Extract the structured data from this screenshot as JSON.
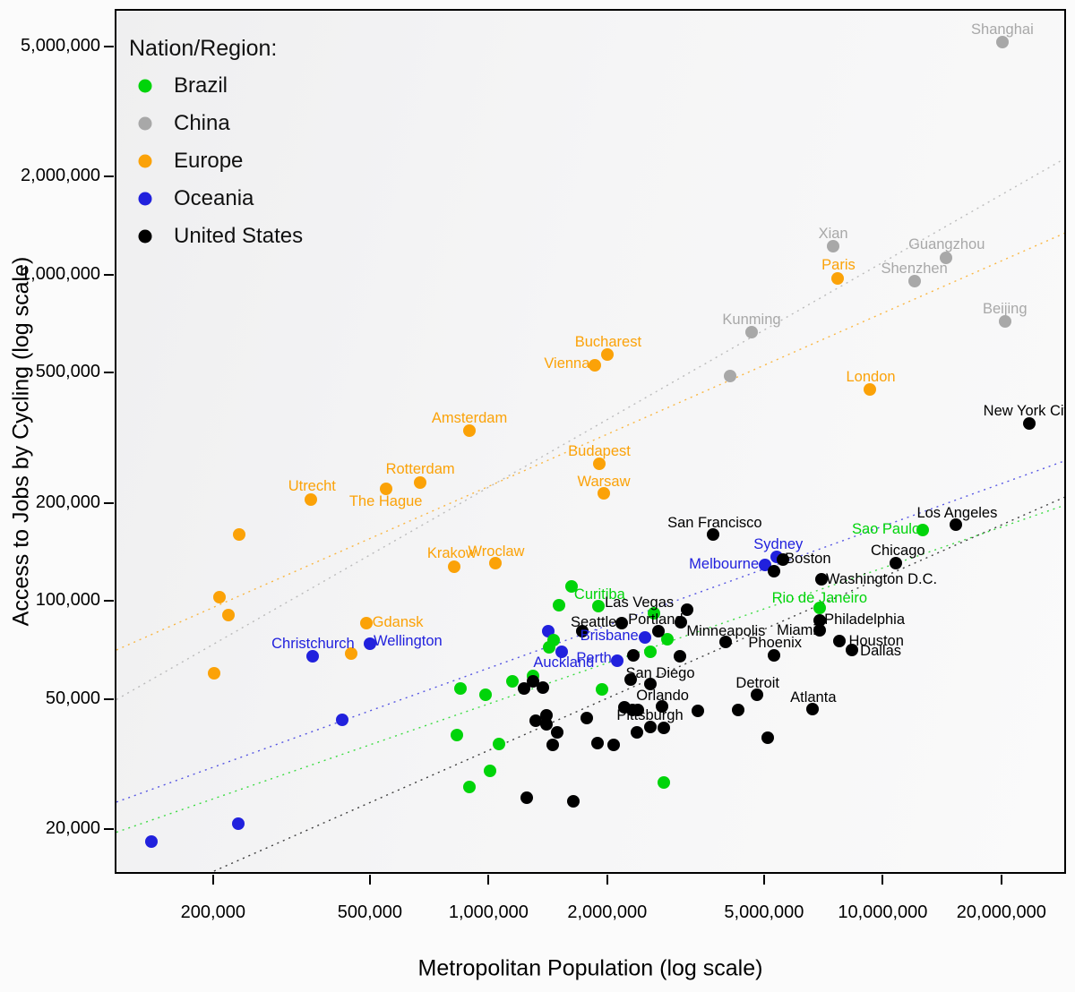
{
  "legend": {
    "title": "Nation/Region:",
    "items": [
      {
        "label": "Brazil",
        "color": "#00d40a"
      },
      {
        "label": "China",
        "color": "#a8a8a8"
      },
      {
        "label": "Europe",
        "color": "#fba208"
      },
      {
        "label": "Oceania",
        "color": "#2121dd"
      },
      {
        "label": "United States",
        "color": "#000000"
      }
    ]
  },
  "chart_data": {
    "type": "scatter",
    "xlabel": "Metropolitan Population (log scale)",
    "ylabel": "Access to Jobs by Cycling (log scale)",
    "x_scale": "log",
    "y_scale": "log",
    "x_log_domain": [
      5.0515,
      7.465
    ],
    "y_log_domain": [
      4.164,
      6.814
    ],
    "x_ticks": [
      {
        "value": 200000,
        "label": "200,000"
      },
      {
        "value": 500000,
        "label": "500,000"
      },
      {
        "value": 1000000,
        "label": "1,000,000"
      },
      {
        "value": 2000000,
        "label": "2,000,000"
      },
      {
        "value": 5000000,
        "label": "5,000,000"
      },
      {
        "value": 10000000,
        "label": "10,000,000"
      },
      {
        "value": 20000000,
        "label": "20,000,000"
      }
    ],
    "y_ticks": [
      {
        "value": 5000000,
        "label": "5,000,000"
      },
      {
        "value": 2000000,
        "label": "2,000,000"
      },
      {
        "value": 1000000,
        "label": "1,000,000"
      },
      {
        "value": 500000,
        "label": "500,000"
      },
      {
        "value": 200000,
        "label": "200,000"
      },
      {
        "value": 100000,
        "label": "100,000"
      },
      {
        "value": 50000,
        "label": "50,000"
      },
      {
        "value": 20000,
        "label": "20,000"
      }
    ],
    "region_colors": {
      "Brazil": "#00d40a",
      "China": "#a8a8a8",
      "Europe": "#fba208",
      "Oceania": "#2121dd",
      "United States": "#000000"
    },
    "trend_lines": [
      {
        "region": "China",
        "slope": 0.689,
        "intercept": 1.223
      },
      {
        "region": "Europe",
        "slope": 0.531,
        "intercept": 2.173
      },
      {
        "region": "Oceania",
        "slope": 0.4346,
        "intercept": 2.194
      },
      {
        "region": "Brazil",
        "slope": 0.4165,
        "intercept": 2.193
      },
      {
        "region": "United States",
        "slope": 0.531,
        "intercept": 1.364
      }
    ],
    "points": [
      {
        "city": "Shanghai",
        "region": "China",
        "pop": 19900000,
        "jobs": 5220000,
        "lo": [
          0,
          -14
        ]
      },
      {
        "city": "Xian",
        "region": "China",
        "pop": 7410000,
        "jobs": 1240000,
        "lo": [
          0,
          -14
        ]
      },
      {
        "city": "Guangzhou",
        "region": "China",
        "pop": 14300000,
        "jobs": 1140000,
        "lo": [
          1,
          -15
        ]
      },
      {
        "city": "Shenzhen",
        "region": "China",
        "pop": 11900000,
        "jobs": 968000,
        "lo": [
          0,
          -14
        ]
      },
      {
        "city": "Beijing",
        "region": "China",
        "pop": 20200000,
        "jobs": 728000,
        "lo": [
          0,
          -14
        ]
      },
      {
        "city": "Kunming",
        "region": "China",
        "pop": 4600000,
        "jobs": 674000,
        "lo": [
          0,
          -14
        ]
      },
      {
        "city": null,
        "region": "China",
        "pop": 4060000,
        "jobs": 495000
      },
      {
        "city": "Paris",
        "region": "Europe",
        "pop": 7600000,
        "jobs": 986000,
        "lo": [
          1,
          -15
        ]
      },
      {
        "city": "London",
        "region": "Europe",
        "pop": 9180000,
        "jobs": 451000,
        "lo": [
          1,
          -14
        ]
      },
      {
        "city": "Bucharest",
        "region": "Europe",
        "pop": 1980000,
        "jobs": 577000,
        "lo": [
          1,
          -14
        ]
      },
      {
        "city": "Vienna",
        "region": "Europe",
        "pop": 1840000,
        "jobs": 535000,
        "lo": [
          -31,
          -2
        ]
      },
      {
        "city": "Amsterdam",
        "region": "Europe",
        "pop": 885000,
        "jobs": 337000,
        "lo": [
          0,
          -14
        ]
      },
      {
        "city": "Budapest",
        "region": "Europe",
        "pop": 1890000,
        "jobs": 267000,
        "lo": [
          0,
          -14
        ]
      },
      {
        "city": "Rotterdam",
        "region": "Europe",
        "pop": 664000,
        "jobs": 234000,
        "lo": [
          0,
          -15
        ]
      },
      {
        "city": "The Hague",
        "region": "Europe",
        "pop": 543000,
        "jobs": 223000,
        "lo": [
          0,
          14
        ]
      },
      {
        "city": "Utrecht",
        "region": "Europe",
        "pop": 351000,
        "jobs": 207000,
        "lo": [
          1,
          -15
        ]
      },
      {
        "city": "Warsaw",
        "region": "Europe",
        "pop": 1940000,
        "jobs": 216000,
        "lo": [
          0,
          -13
        ]
      },
      {
        "city": "Krakow",
        "region": "Europe",
        "pop": 811000,
        "jobs": 129000,
        "lo": [
          -3,
          -15
        ]
      },
      {
        "city": "Wroclaw",
        "region": "Europe",
        "pop": 1030000,
        "jobs": 132000,
        "lo": [
          1,
          -13
        ]
      },
      {
        "city": "Gdansk",
        "region": "Europe",
        "pop": 485000,
        "jobs": 86700,
        "lo": [
          35,
          -1
        ]
      },
      {
        "city": null,
        "region": "Europe",
        "pop": 230000,
        "jobs": 162000
      },
      {
        "city": null,
        "region": "Europe",
        "pop": 206000,
        "jobs": 104000
      },
      {
        "city": null,
        "region": "Europe",
        "pop": 217000,
        "jobs": 91600
      },
      {
        "city": null,
        "region": "Europe",
        "pop": 199000,
        "jobs": 60800
      },
      {
        "city": null,
        "region": "Europe",
        "pop": 443000,
        "jobs": 69900
      },
      {
        "city": "Sydney",
        "region": "Oceania",
        "pop": 5320000,
        "jobs": 138000,
        "lo": [
          2,
          -14
        ]
      },
      {
        "city": "Melbourne",
        "region": "Oceania",
        "pop": 4980000,
        "jobs": 131000,
        "lo": [
          -46,
          -1
        ]
      },
      {
        "city": "Brisbane",
        "region": "Oceania",
        "pop": 2470000,
        "jobs": 78400,
        "lo": [
          -40,
          -2
        ]
      },
      {
        "city": "Perth",
        "region": "Oceania",
        "pop": 2100000,
        "jobs": 66600,
        "lo": [
          -26,
          -3
        ]
      },
      {
        "city": "Auckland",
        "region": "Oceania",
        "pop": 1520000,
        "jobs": 70800,
        "lo": [
          2,
          12
        ]
      },
      {
        "city": "Wellington",
        "region": "Oceania",
        "pop": 496000,
        "jobs": 75100,
        "lo": [
          42,
          -3
        ]
      },
      {
        "city": "Christchurch",
        "region": "Oceania",
        "pop": 355000,
        "jobs": 68600,
        "lo": [
          0,
          -14
        ]
      },
      {
        "city": null,
        "region": "Oceania",
        "pop": 1400000,
        "jobs": 81800
      },
      {
        "city": null,
        "region": "Oceania",
        "pop": 420000,
        "jobs": 43700
      },
      {
        "city": null,
        "region": "Oceania",
        "pop": 229000,
        "jobs": 21000
      },
      {
        "city": null,
        "region": "Oceania",
        "pop": 138000,
        "jobs": 18600
      },
      {
        "city": "Sao Paulo",
        "region": "Brazil",
        "pop": 12500000,
        "jobs": 167000,
        "lo": [
          -41,
          -1
        ]
      },
      {
        "city": "Rio de Janeiro",
        "region": "Brazil",
        "pop": 6840000,
        "jobs": 96600,
        "lo": [
          0,
          -11
        ]
      },
      {
        "city": "Curitiba",
        "region": "Brazil",
        "pop": 1610000,
        "jobs": 112000,
        "lo": [
          31,
          9
        ]
      },
      {
        "city": null,
        "region": "Brazil",
        "pop": 1490000,
        "jobs": 98400
      },
      {
        "city": null,
        "region": "Brazil",
        "pop": 1880000,
        "jobs": 97900
      },
      {
        "city": null,
        "region": "Brazil",
        "pop": 2600000,
        "jobs": 92900
      },
      {
        "city": null,
        "region": "Brazil",
        "pop": 1450000,
        "jobs": 76900
      },
      {
        "city": null,
        "region": "Brazil",
        "pop": 1410000,
        "jobs": 73100
      },
      {
        "city": null,
        "region": "Brazil",
        "pop": 2540000,
        "jobs": 70800
      },
      {
        "city": null,
        "region": "Brazil",
        "pop": 2820000,
        "jobs": 77300
      },
      {
        "city": null,
        "region": "Brazil",
        "pop": 1140000,
        "jobs": 57500
      },
      {
        "city": null,
        "region": "Brazil",
        "pop": 1280000,
        "jobs": 59700
      },
      {
        "city": null,
        "region": "Brazil",
        "pop": 839000,
        "jobs": 54700
      },
      {
        "city": null,
        "region": "Brazil",
        "pop": 973000,
        "jobs": 52400
      },
      {
        "city": null,
        "region": "Brazil",
        "pop": 1920000,
        "jobs": 54400
      },
      {
        "city": null,
        "region": "Brazil",
        "pop": 822000,
        "jobs": 39400
      },
      {
        "city": null,
        "region": "Brazil",
        "pop": 1050000,
        "jobs": 36900
      },
      {
        "city": null,
        "region": "Brazil",
        "pop": 1000000,
        "jobs": 30500
      },
      {
        "city": null,
        "region": "Brazil",
        "pop": 885000,
        "jobs": 27200
      },
      {
        "city": null,
        "region": "Brazil",
        "pop": 2760000,
        "jobs": 28100
      },
      {
        "city": "New York City",
        "region": "United States",
        "pop": 23300000,
        "jobs": 355000,
        "lo": [
          0,
          -14
        ]
      },
      {
        "city": "Los Angeles",
        "region": "United States",
        "pop": 15200000,
        "jobs": 173000,
        "lo": [
          1,
          -13
        ]
      },
      {
        "city": "San Francisco",
        "region": "United States",
        "pop": 3670000,
        "jobs": 162000,
        "lo": [
          2,
          -13
        ]
      },
      {
        "city": "Chicago",
        "region": "United States",
        "pop": 10700000,
        "jobs": 132000,
        "lo": [
          2,
          -14
        ]
      },
      {
        "city": "Boston",
        "region": "United States",
        "pop": 5520000,
        "jobs": 136000,
        "lo": [
          28,
          -1
        ]
      },
      {
        "city": "Washington D.C.",
        "region": "United States",
        "pop": 6920000,
        "jobs": 118000,
        "lo": [
          67,
          0
        ]
      },
      {
        "city": "Philadelphia",
        "region": "United States",
        "pop": 6850000,
        "jobs": 88000,
        "lo": [
          50,
          -1
        ]
      },
      {
        "city": "Miami",
        "region": "United States",
        "pop": 6850000,
        "jobs": 82400,
        "lo": [
          -26,
          0
        ]
      },
      {
        "city": "Houston",
        "region": "United States",
        "pop": 7690000,
        "jobs": 76500,
        "lo": [
          41,
          0
        ]
      },
      {
        "city": "Dallas",
        "region": "United States",
        "pop": 8270000,
        "jobs": 71500,
        "lo": [
          32,
          1
        ]
      },
      {
        "city": "Phoenix",
        "region": "United States",
        "pop": 5250000,
        "jobs": 69000,
        "lo": [
          1,
          -14
        ]
      },
      {
        "city": "Minneapolis",
        "region": "United States",
        "pop": 3960000,
        "jobs": 76000,
        "lo": [
          0,
          -12
        ]
      },
      {
        "city": "Detroit",
        "region": "United States",
        "pop": 4740000,
        "jobs": 52400,
        "lo": [
          1,
          -13
        ]
      },
      {
        "city": "Atlanta",
        "region": "United States",
        "pop": 6560000,
        "jobs": 47200,
        "lo": [
          1,
          -13
        ]
      },
      {
        "city": "Seattle",
        "region": "United States",
        "pop": 2150000,
        "jobs": 86700,
        "lo": [
          -31,
          -1
        ]
      },
      {
        "city": "Portland",
        "region": "United States",
        "pop": 3040000,
        "jobs": 87200,
        "lo": [
          -28,
          -3
        ]
      },
      {
        "city": "Las Vegas",
        "region": "United States",
        "pop": 3150000,
        "jobs": 95000,
        "lo": [
          -53,
          -8
        ]
      },
      {
        "city": "San Diego",
        "region": "United States",
        "pop": 2270000,
        "jobs": 58200,
        "lo": [
          33,
          -7
        ]
      },
      {
        "city": "Orlando",
        "region": "United States",
        "pop": 2720000,
        "jobs": 48200,
        "lo": [
          1,
          -12
        ]
      },
      {
        "city": "Pittsburgh",
        "region": "United States",
        "pop": 2540000,
        "jobs": 41600,
        "lo": [
          0,
          -13
        ]
      },
      {
        "city": null,
        "region": "United States",
        "pop": 5250000,
        "jobs": 125000
      },
      {
        "city": null,
        "region": "United States",
        "pop": 2670000,
        "jobs": 81800
      },
      {
        "city": null,
        "region": "United States",
        "pop": 1710000,
        "jobs": 81800
      },
      {
        "city": null,
        "region": "United States",
        "pop": 2310000,
        "jobs": 69000
      },
      {
        "city": null,
        "region": "United States",
        "pop": 3030000,
        "jobs": 68600
      },
      {
        "city": null,
        "region": "United States",
        "pop": 1220000,
        "jobs": 54600
      },
      {
        "city": null,
        "region": "United States",
        "pop": 1280000,
        "jobs": 57500
      },
      {
        "city": null,
        "region": "United States",
        "pop": 1360000,
        "jobs": 54900
      },
      {
        "city": null,
        "region": "United States",
        "pop": 1300000,
        "jobs": 43500
      },
      {
        "city": null,
        "region": "United States",
        "pop": 1390000,
        "jobs": 45200
      },
      {
        "city": null,
        "region": "United States",
        "pop": 1390000,
        "jobs": 42300
      },
      {
        "city": null,
        "region": "United States",
        "pop": 1480000,
        "jobs": 40200
      },
      {
        "city": null,
        "region": "United States",
        "pop": 1440000,
        "jobs": 36600
      },
      {
        "city": null,
        "region": "United States",
        "pop": 1760000,
        "jobs": 44300
      },
      {
        "city": null,
        "region": "United States",
        "pop": 1870000,
        "jobs": 37200
      },
      {
        "city": null,
        "region": "United States",
        "pop": 2060000,
        "jobs": 36600
      },
      {
        "city": null,
        "region": "United States",
        "pop": 2360000,
        "jobs": 40200
      },
      {
        "city": null,
        "region": "United States",
        "pop": 2760000,
        "jobs": 41400
      },
      {
        "city": null,
        "region": "United States",
        "pop": 2190000,
        "jobs": 47900
      },
      {
        "city": null,
        "region": "United States",
        "pop": 2290000,
        "jobs": 46900
      },
      {
        "city": null,
        "region": "United States",
        "pop": 2370000,
        "jobs": 46900
      },
      {
        "city": null,
        "region": "United States",
        "pop": 2540000,
        "jobs": 56300
      },
      {
        "city": null,
        "region": "United States",
        "pop": 3360000,
        "jobs": 46600
      },
      {
        "city": null,
        "region": "United States",
        "pop": 4260000,
        "jobs": 46900
      },
      {
        "city": null,
        "region": "United States",
        "pop": 5060000,
        "jobs": 38700
      },
      {
        "city": null,
        "region": "United States",
        "pop": 1240000,
        "jobs": 25300
      },
      {
        "city": null,
        "region": "United States",
        "pop": 1620000,
        "jobs": 24600
      }
    ]
  }
}
